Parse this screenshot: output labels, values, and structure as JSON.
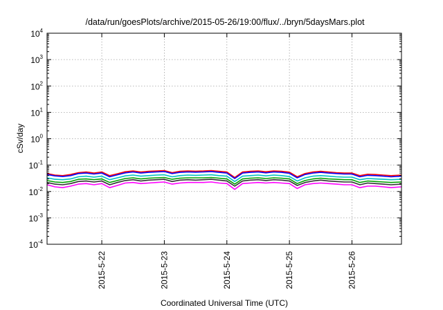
{
  "chart_data": {
    "type": "line",
    "title": "/data/run/goesPlots/archive/2015-05-26/19:00/flux/../bryn/5daysMars.plot",
    "xlabel": "Coordinated Universal Time (UTC)",
    "ylabel": "cSv/day",
    "yscale": "log",
    "grid": true,
    "legend": "none",
    "xlim": [
      "2015-05-21T03:00",
      "2015-05-26T19:00"
    ],
    "ylim": [
      0.0001,
      10000
    ],
    "x_ticks": [
      {
        "value": "2015-05-22T00:00",
        "label": "2015-5-22"
      },
      {
        "value": "2015-05-23T00:00",
        "label": "2015-5-23"
      },
      {
        "value": "2015-05-24T00:00",
        "label": "2015-5-24"
      },
      {
        "value": "2015-05-25T00:00",
        "label": "2015-5-25"
      },
      {
        "value": "2015-05-26T00:00",
        "label": "2015-5-26"
      }
    ],
    "y_ticks": [
      {
        "value": 0.0001,
        "base": "10",
        "exp": "-4"
      },
      {
        "value": 0.001,
        "base": "10",
        "exp": "-3"
      },
      {
        "value": 0.01,
        "base": "10",
        "exp": "-2"
      },
      {
        "value": 0.1,
        "base": "10",
        "exp": "-1"
      },
      {
        "value": 1,
        "base": "10",
        "exp": "0"
      },
      {
        "value": 10,
        "base": "10",
        "exp": "1"
      },
      {
        "value": 100,
        "base": "10",
        "exp": "2"
      },
      {
        "value": 1000,
        "base": "10",
        "exp": "3"
      },
      {
        "value": 10000,
        "base": "10",
        "exp": "4"
      }
    ],
    "x": [
      "2015-05-21T03:00",
      "2015-05-21T06:00",
      "2015-05-21T09:00",
      "2015-05-21T12:00",
      "2015-05-21T15:00",
      "2015-05-21T18:00",
      "2015-05-21T21:00",
      "2015-05-22T00:00",
      "2015-05-22T03:00",
      "2015-05-22T06:00",
      "2015-05-22T09:00",
      "2015-05-22T12:00",
      "2015-05-22T15:00",
      "2015-05-22T18:00",
      "2015-05-22T21:00",
      "2015-05-23T00:00",
      "2015-05-23T03:00",
      "2015-05-23T06:00",
      "2015-05-23T09:00",
      "2015-05-23T12:00",
      "2015-05-23T15:00",
      "2015-05-23T18:00",
      "2015-05-23T21:00",
      "2015-05-24T00:00",
      "2015-05-24T03:00",
      "2015-05-24T06:00",
      "2015-05-24T09:00",
      "2015-05-24T12:00",
      "2015-05-24T15:00",
      "2015-05-24T18:00",
      "2015-05-24T21:00",
      "2015-05-25T00:00",
      "2015-05-25T03:00",
      "2015-05-25T06:00",
      "2015-05-25T09:00",
      "2015-05-25T12:00",
      "2015-05-25T15:00",
      "2015-05-25T18:00",
      "2015-05-25T21:00",
      "2015-05-26T00:00",
      "2015-05-26T03:00",
      "2015-05-26T06:00",
      "2015-05-26T09:00",
      "2015-05-26T12:00",
      "2015-05-26T15:00",
      "2015-05-26T19:00"
    ],
    "series": [
      {
        "color": "#ff0000",
        "values": [
          0.048,
          0.042,
          0.04,
          0.044,
          0.052,
          0.055,
          0.05,
          0.055,
          0.04,
          0.047,
          0.056,
          0.06,
          0.055,
          0.058,
          0.06,
          0.062,
          0.052,
          0.058,
          0.06,
          0.059,
          0.06,
          0.062,
          0.058,
          0.055,
          0.034,
          0.055,
          0.058,
          0.06,
          0.056,
          0.06,
          0.058,
          0.054,
          0.036,
          0.048,
          0.055,
          0.058,
          0.055,
          0.052,
          0.05,
          0.05,
          0.04,
          0.045,
          0.044,
          0.042,
          0.04,
          0.042
        ]
      },
      {
        "color": "#0000ff",
        "values": [
          0.044,
          0.039,
          0.037,
          0.04,
          0.048,
          0.05,
          0.046,
          0.05,
          0.036,
          0.043,
          0.051,
          0.055,
          0.05,
          0.053,
          0.055,
          0.057,
          0.048,
          0.053,
          0.055,
          0.054,
          0.055,
          0.057,
          0.053,
          0.05,
          0.031,
          0.05,
          0.053,
          0.055,
          0.051,
          0.055,
          0.053,
          0.049,
          0.033,
          0.044,
          0.05,
          0.053,
          0.05,
          0.048,
          0.046,
          0.046,
          0.036,
          0.041,
          0.04,
          0.038,
          0.036,
          0.038
        ]
      },
      {
        "color": "#00c0c0",
        "values": [
          0.033,
          0.029,
          0.028,
          0.03,
          0.036,
          0.038,
          0.035,
          0.038,
          0.028,
          0.033,
          0.039,
          0.042,
          0.038,
          0.04,
          0.042,
          0.043,
          0.036,
          0.04,
          0.042,
          0.041,
          0.042,
          0.043,
          0.04,
          0.038,
          0.024,
          0.038,
          0.04,
          0.042,
          0.039,
          0.042,
          0.04,
          0.037,
          0.025,
          0.033,
          0.038,
          0.04,
          0.038,
          0.036,
          0.035,
          0.035,
          0.028,
          0.031,
          0.03,
          0.029,
          0.028,
          0.029
        ]
      },
      {
        "color": "#00a000",
        "values": [
          0.026,
          0.023,
          0.022,
          0.024,
          0.029,
          0.03,
          0.028,
          0.03,
          0.022,
          0.026,
          0.031,
          0.033,
          0.03,
          0.032,
          0.033,
          0.034,
          0.029,
          0.032,
          0.033,
          0.033,
          0.033,
          0.034,
          0.032,
          0.03,
          0.019,
          0.03,
          0.032,
          0.033,
          0.031,
          0.033,
          0.032,
          0.03,
          0.02,
          0.026,
          0.03,
          0.032,
          0.03,
          0.029,
          0.028,
          0.028,
          0.022,
          0.025,
          0.024,
          0.023,
          0.022,
          0.023
        ]
      },
      {
        "color": "#303030",
        "values": [
          0.022,
          0.019,
          0.018,
          0.02,
          0.024,
          0.025,
          0.023,
          0.025,
          0.018,
          0.022,
          0.026,
          0.028,
          0.025,
          0.027,
          0.028,
          0.029,
          0.024,
          0.027,
          0.028,
          0.027,
          0.028,
          0.029,
          0.027,
          0.025,
          0.016,
          0.025,
          0.027,
          0.028,
          0.026,
          0.028,
          0.027,
          0.025,
          0.017,
          0.022,
          0.025,
          0.027,
          0.025,
          0.024,
          0.023,
          0.023,
          0.018,
          0.021,
          0.02,
          0.019,
          0.018,
          0.019
        ]
      },
      {
        "color": "#ff00ff",
        "values": [
          0.018,
          0.015,
          0.014,
          0.016,
          0.019,
          0.02,
          0.018,
          0.02,
          0.014,
          0.017,
          0.021,
          0.022,
          0.02,
          0.021,
          0.022,
          0.023,
          0.019,
          0.021,
          0.022,
          0.022,
          0.022,
          0.023,
          0.021,
          0.02,
          0.012,
          0.02,
          0.021,
          0.022,
          0.021,
          0.022,
          0.021,
          0.02,
          0.013,
          0.018,
          0.02,
          0.021,
          0.02,
          0.019,
          0.018,
          0.018,
          0.014,
          0.016,
          0.016,
          0.015,
          0.014,
          0.015
        ]
      }
    ]
  }
}
